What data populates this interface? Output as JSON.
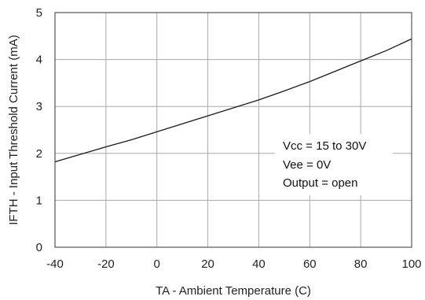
{
  "chart_data": {
    "type": "line",
    "title": "",
    "xlabel": "TA - Ambient Temperature (C)",
    "ylabel": "IFTH - Input Threshold Current (mA)",
    "xlim": [
      -40,
      100
    ],
    "ylim": [
      0,
      5
    ],
    "x_ticks": [
      -40,
      -20,
      0,
      20,
      40,
      60,
      80,
      100
    ],
    "y_ticks": [
      0,
      1,
      2,
      3,
      4,
      5
    ],
    "grid": true,
    "legend": "none",
    "series": [
      {
        "x": [
          -40,
          -30,
          -20,
          -10,
          0,
          10,
          20,
          30,
          40,
          50,
          60,
          70,
          80,
          90,
          100
        ],
        "y": [
          1.82,
          1.98,
          2.14,
          2.29,
          2.46,
          2.63,
          2.8,
          2.97,
          3.14,
          3.33,
          3.53,
          3.75,
          3.97,
          4.19,
          4.44
        ]
      }
    ],
    "annotations": [
      "Vcc = 15 to 30V",
      "Vee = 0V",
      "Output = open"
    ]
  }
}
